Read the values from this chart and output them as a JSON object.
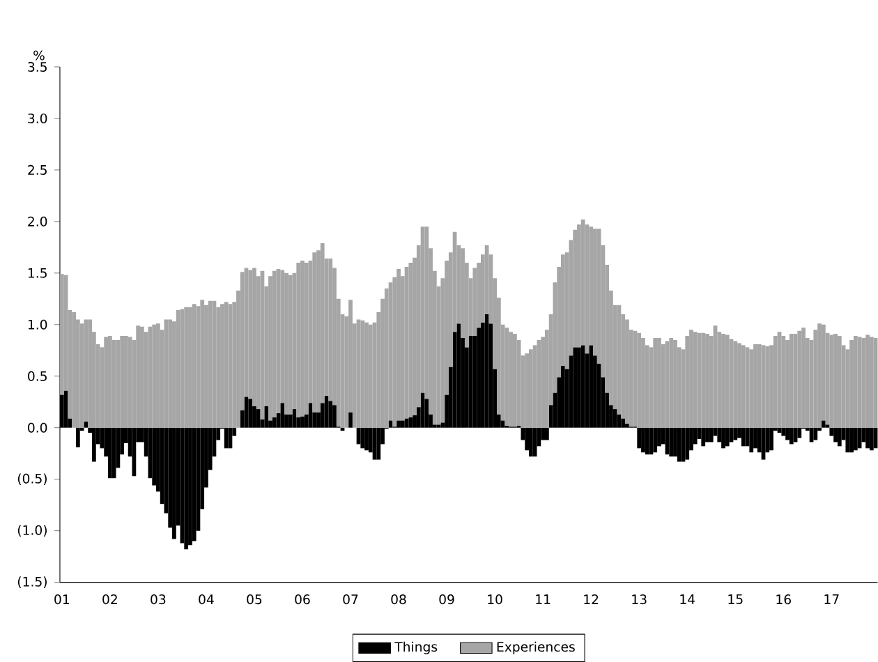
{
  "chart_data": {
    "type": "bar",
    "ylabel": "%",
    "categories": [
      "01",
      null,
      null,
      null,
      null,
      null,
      null,
      null,
      null,
      null,
      null,
      null,
      "02",
      null,
      null,
      null,
      null,
      null,
      null,
      null,
      null,
      null,
      null,
      null,
      "03",
      null,
      null,
      null,
      null,
      null,
      null,
      null,
      null,
      null,
      null,
      null,
      "04",
      null,
      null,
      null,
      null,
      null,
      null,
      null,
      null,
      null,
      null,
      null,
      "05",
      null,
      null,
      null,
      null,
      null,
      null,
      null,
      null,
      null,
      null,
      null,
      "06",
      null,
      null,
      null,
      null,
      null,
      null,
      null,
      null,
      null,
      null,
      null,
      "07",
      null,
      null,
      null,
      null,
      null,
      null,
      null,
      null,
      null,
      null,
      null,
      "08",
      null,
      null,
      null,
      null,
      null,
      null,
      null,
      null,
      null,
      null,
      null,
      "09",
      null,
      null,
      null,
      null,
      null,
      null,
      null,
      null,
      null,
      null,
      null,
      "10",
      null,
      null,
      null,
      null,
      null,
      null,
      null,
      null,
      null,
      null,
      null,
      "11",
      null,
      null,
      null,
      null,
      null,
      null,
      null,
      null,
      null,
      null,
      null,
      "12",
      null,
      null,
      null,
      null,
      null,
      null,
      null,
      null,
      null,
      null,
      null,
      "13",
      null,
      null,
      null,
      null,
      null,
      null,
      null,
      null,
      null,
      null,
      null,
      "14",
      null,
      null,
      null,
      null,
      null,
      null,
      null,
      null,
      null,
      null,
      null,
      "15",
      null,
      null,
      null,
      null,
      null,
      null,
      null,
      null,
      null,
      null,
      null,
      "16",
      null,
      null,
      null,
      null,
      null,
      null,
      null,
      null,
      null,
      null,
      null,
      "17",
      null,
      null,
      null,
      null,
      null,
      null,
      null,
      null,
      null,
      null,
      null
    ],
    "series": [
      {
        "name": "Things",
        "color": "#000000",
        "values": [
          0.32,
          0.36,
          0.09,
          0.0,
          -0.19,
          -0.03,
          0.06,
          -0.05,
          -0.33,
          -0.16,
          -0.2,
          -0.28,
          -0.49,
          -0.49,
          -0.39,
          -0.26,
          -0.15,
          -0.28,
          -0.47,
          -0.14,
          -0.14,
          -0.28,
          -0.49,
          -0.56,
          -0.62,
          -0.74,
          -0.83,
          -0.97,
          -1.08,
          -0.95,
          -1.12,
          -1.18,
          -1.14,
          -1.1,
          -1.0,
          -0.79,
          -0.58,
          -0.41,
          -0.28,
          -0.12,
          -0.01,
          -0.2,
          -0.2,
          -0.08,
          0.0,
          0.17,
          0.3,
          0.28,
          0.21,
          0.18,
          0.08,
          0.21,
          0.07,
          0.1,
          0.14,
          0.24,
          0.13,
          0.13,
          0.18,
          0.1,
          0.11,
          0.13,
          0.24,
          0.15,
          0.15,
          0.24,
          0.31,
          0.26,
          0.22,
          0.01,
          -0.03,
          0.0,
          0.15,
          0.0,
          -0.16,
          -0.2,
          -0.22,
          -0.24,
          -0.31,
          -0.31,
          -0.16,
          -0.01,
          0.07,
          0.01,
          0.07,
          0.07,
          0.09,
          0.1,
          0.12,
          0.2,
          0.34,
          0.28,
          0.13,
          0.03,
          0.03,
          0.05,
          0.32,
          0.59,
          0.93,
          1.01,
          0.87,
          0.78,
          0.89,
          0.89,
          0.97,
          1.02,
          1.1,
          1.01,
          0.57,
          0.13,
          0.07,
          0.02,
          0.01,
          0.01,
          0.02,
          -0.12,
          -0.22,
          -0.28,
          -0.28,
          -0.18,
          -0.12,
          -0.12,
          0.22,
          0.34,
          0.49,
          0.6,
          0.57,
          0.7,
          0.78,
          0.78,
          0.8,
          0.72,
          0.8,
          0.7,
          0.62,
          0.49,
          0.34,
          0.22,
          0.18,
          0.13,
          0.09,
          0.04,
          0.01,
          0.01,
          -0.2,
          -0.24,
          -0.26,
          -0.26,
          -0.24,
          -0.18,
          -0.16,
          -0.26,
          -0.28,
          -0.28,
          -0.33,
          -0.33,
          -0.31,
          -0.22,
          -0.16,
          -0.11,
          -0.18,
          -0.14,
          -0.14,
          -0.08,
          -0.14,
          -0.2,
          -0.18,
          -0.14,
          -0.12,
          -0.1,
          -0.18,
          -0.18,
          -0.24,
          -0.2,
          -0.24,
          -0.31,
          -0.24,
          -0.22,
          -0.03,
          -0.05,
          -0.08,
          -0.12,
          -0.16,
          -0.14,
          -0.1,
          -0.01,
          -0.03,
          -0.14,
          -0.12,
          -0.03,
          0.07,
          0.03,
          -0.08,
          -0.14,
          -0.18,
          -0.12,
          -0.24,
          -0.24,
          -0.22,
          -0.2,
          -0.14,
          -0.2,
          -0.22,
          -0.2
        ]
      },
      {
        "name": "Experiences",
        "color": "#a6a6a6",
        "values": [
          1.17,
          1.12,
          1.05,
          1.12,
          1.05,
          1.01,
          0.99,
          1.05,
          0.93,
          0.81,
          0.78,
          0.88,
          0.89,
          0.85,
          0.85,
          0.89,
          0.89,
          0.88,
          0.85,
          0.99,
          0.98,
          0.93,
          0.98,
          1.0,
          1.01,
          0.95,
          1.05,
          1.05,
          1.03,
          1.14,
          1.15,
          1.17,
          1.17,
          1.2,
          1.18,
          1.24,
          1.19,
          1.23,
          1.23,
          1.17,
          1.2,
          1.22,
          1.2,
          1.22,
          1.33,
          1.34,
          1.25,
          1.25,
          1.34,
          1.29,
          1.44,
          1.16,
          1.4,
          1.42,
          1.4,
          1.29,
          1.37,
          1.35,
          1.32,
          1.5,
          1.51,
          1.47,
          1.38,
          1.55,
          1.57,
          1.55,
          1.33,
          1.38,
          1.33,
          1.24,
          1.1,
          1.08,
          1.09,
          1.01,
          1.05,
          1.04,
          1.02,
          1.0,
          1.02,
          1.12,
          1.25,
          1.35,
          1.34,
          1.45,
          1.47,
          1.4,
          1.47,
          1.5,
          1.53,
          1.57,
          1.61,
          1.67,
          1.61,
          1.49,
          1.34,
          1.4,
          1.3,
          1.11,
          0.97,
          0.76,
          0.87,
          0.82,
          0.56,
          0.66,
          0.63,
          0.66,
          0.67,
          0.67,
          0.88,
          1.13,
          0.93,
          0.95,
          0.92,
          0.9,
          0.83,
          0.7,
          0.72,
          0.76,
          0.8,
          0.85,
          0.88,
          0.95,
          0.88,
          1.07,
          1.07,
          1.08,
          1.13,
          1.12,
          1.14,
          1.19,
          1.22,
          1.25,
          1.15,
          1.23,
          1.31,
          1.28,
          1.24,
          1.11,
          1.01,
          1.06,
          1.01,
          1.01,
          0.94,
          0.93,
          0.92,
          0.87,
          0.8,
          0.78,
          0.87,
          0.87,
          0.81,
          0.84,
          0.87,
          0.85,
          0.78,
          0.76,
          0.89,
          0.95,
          0.93,
          0.92,
          0.92,
          0.91,
          0.89,
          0.99,
          0.93,
          0.91,
          0.9,
          0.86,
          0.84,
          0.82,
          0.8,
          0.78,
          0.76,
          0.81,
          0.81,
          0.8,
          0.79,
          0.8,
          0.89,
          0.93,
          0.89,
          0.85,
          0.91,
          0.91,
          0.94,
          0.97,
          0.87,
          0.85,
          0.95,
          1.01,
          0.93,
          0.89,
          0.9,
          0.91,
          0.89,
          0.8,
          0.76,
          0.85,
          0.89,
          0.88,
          0.87,
          0.9,
          0.88,
          0.87
        ]
      }
    ],
    "ylim": [
      -1.5,
      3.5
    ],
    "yticks": [
      {
        "value": -1.5,
        "label": "(1.5)"
      },
      {
        "value": -1.0,
        "label": "(1.0)"
      },
      {
        "value": -0.5,
        "label": "(0.5)"
      },
      {
        "value": 0,
        "label": "0.0"
      },
      0.5,
      {
        "value": 1,
        "label": "1.0"
      },
      1.5,
      {
        "value": 2,
        "label": "2.0"
      },
      2.5,
      {
        "value": 3,
        "label": "3.0"
      },
      3.5
    ],
    "stacked": true,
    "legend": "bottom"
  }
}
